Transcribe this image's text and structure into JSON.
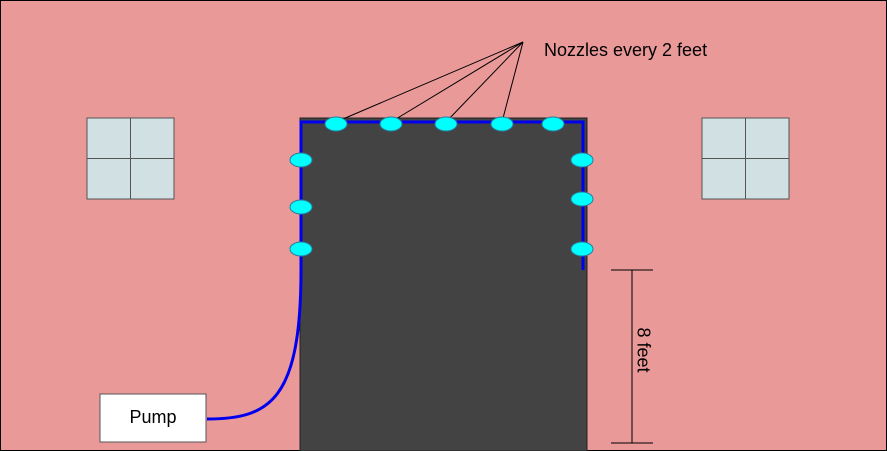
{
  "annotation": "Nozzles every 2 feet",
  "pump": {
    "label": "Pump"
  },
  "dimension": {
    "label": "8 feet"
  }
}
